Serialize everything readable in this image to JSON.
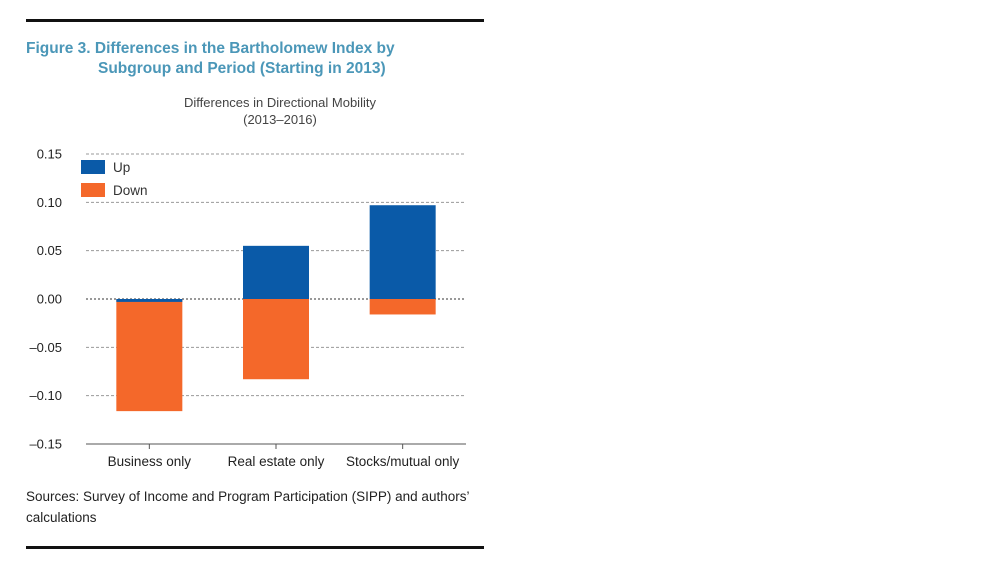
{
  "figure": {
    "title_line1": "Figure 3. Differences in the Bartholomew Index by",
    "title_line2": "Subgroup and Period (Starting in 2013)",
    "sources": "Sources: Survey of Income and Program Participation (SIPP) and authors’ calculations"
  },
  "chart_data": {
    "type": "bar",
    "title": "Differences in Directional Mobility",
    "subtitle": "(2013–2016)",
    "categories": [
      "Business only",
      "Real estate only",
      "Stocks/mutual only"
    ],
    "series": [
      {
        "name": "Up",
        "color": "#0a5aa8",
        "values": [
          -0.003,
          0.055,
          0.097
        ]
      },
      {
        "name": "Down",
        "color": "#f4682a",
        "values": [
          -0.116,
          -0.083,
          -0.016
        ]
      }
    ],
    "ylim": [
      -0.15,
      0.15
    ],
    "yticks": [
      "0.15",
      "0.10",
      "0.05",
      "0.00",
      "–0.05",
      "–0.10",
      "–0.15"
    ],
    "ytick_values": [
      0.15,
      0.1,
      0.05,
      0.0,
      -0.05,
      -0.1,
      -0.15
    ],
    "grid": true,
    "legend_position": "top-left"
  }
}
